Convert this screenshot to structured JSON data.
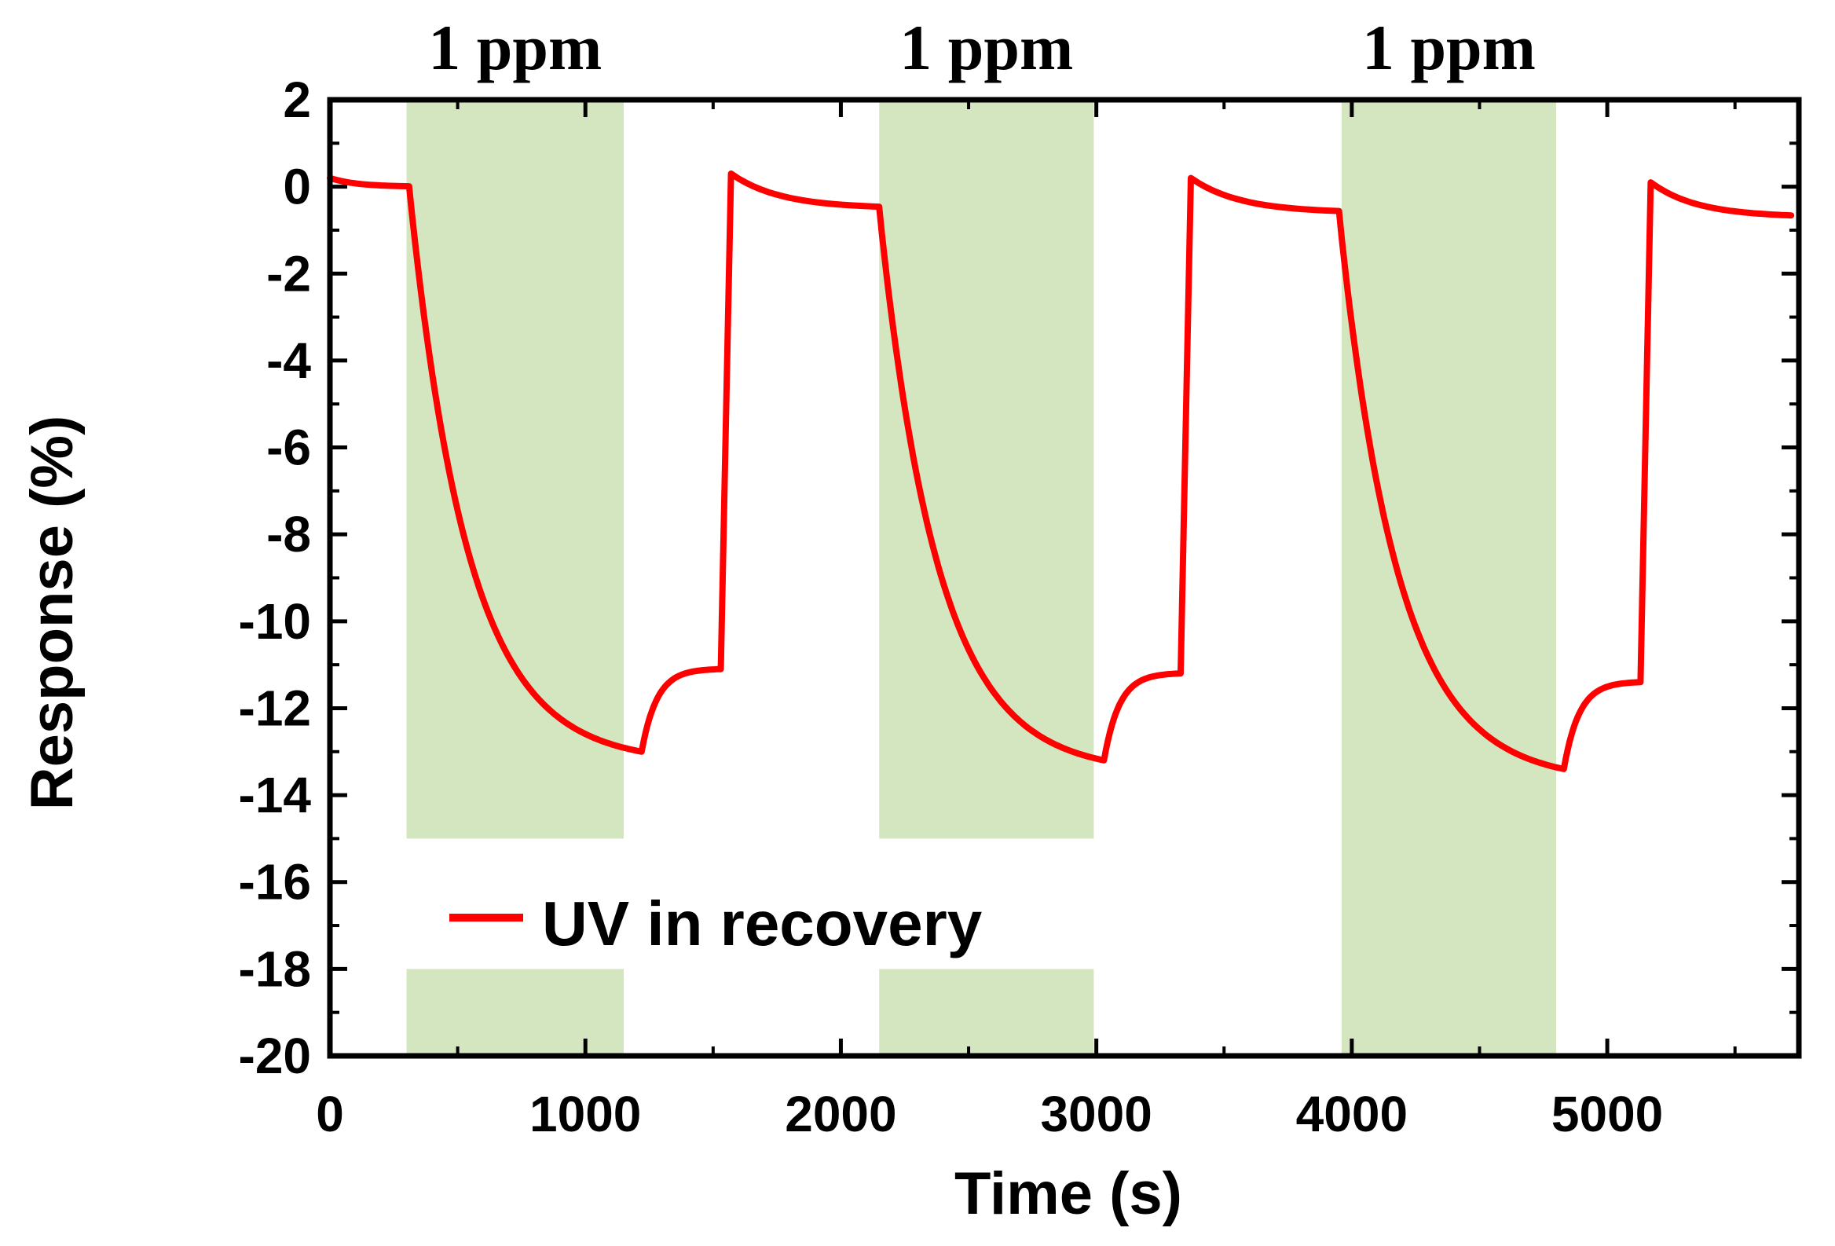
{
  "chart_data": {
    "type": "line",
    "title": "",
    "xlabel": "Time (s)",
    "ylabel": "Response (%)",
    "xlim": [
      0,
      5750
    ],
    "ylim": [
      -20,
      2
    ],
    "x_ticks": [
      0,
      1000,
      2000,
      3000,
      4000,
      5000
    ],
    "x_tick_labels": [
      "0",
      "1000",
      "2000",
      "3000",
      "4000",
      "5000"
    ],
    "y_ticks": [
      2,
      0,
      -2,
      -4,
      -6,
      -8,
      -10,
      -12,
      -14,
      -16,
      -18,
      -20
    ],
    "y_tick_labels": [
      "2",
      "0",
      "-2",
      "-4",
      "-6",
      "-8",
      "-10",
      "-12",
      "-14",
      "-16",
      "-18",
      "-20"
    ],
    "grid": false,
    "legend": {
      "position": "lower-left",
      "entries": [
        "UV in recovery"
      ]
    },
    "colors": {
      "series": "#ff0000",
      "band": "#d3e6bf",
      "axis": "#000000"
    },
    "exposure_bands": [
      {
        "label": "1 ppm",
        "x_start": 300,
        "x_end": 1150
      },
      {
        "label": "1 ppm",
        "x_start": 2150,
        "x_end": 2990
      },
      {
        "label": "1 ppm",
        "x_start": 3960,
        "x_end": 4800
      }
    ],
    "series": [
      {
        "name": "UV in recovery",
        "color": "#ff0000",
        "cycles": [
          {
            "start_x": 0,
            "start_y": 0.2,
            "expo_x": 310,
            "expo_y": 0.0,
            "expo_end_x": 1150,
            "min_x": 1220,
            "min_y": -13.0,
            "recovery_y": -11.1,
            "uv_x": 1530,
            "peak_x": 1570,
            "peak_y": 0.3,
            "base_end_y": -0.5
          },
          {
            "start_x": 1570,
            "start_y": 0.3,
            "expo_x": 2150,
            "expo_y": -0.5,
            "expo_end_x": 2990,
            "min_x": 3030,
            "min_y": -13.2,
            "recovery_y": -11.2,
            "uv_x": 3330,
            "peak_x": 3370,
            "peak_y": 0.2,
            "base_end_y": -0.6
          },
          {
            "start_x": 3370,
            "start_y": 0.2,
            "expo_x": 3950,
            "expo_y": -0.6,
            "expo_end_x": 4800,
            "min_x": 4830,
            "min_y": -13.4,
            "recovery_y": -11.4,
            "uv_x": 5130,
            "peak_x": 5170,
            "peak_y": 0.1,
            "base_end_y": -0.7
          }
        ]
      }
    ]
  }
}
